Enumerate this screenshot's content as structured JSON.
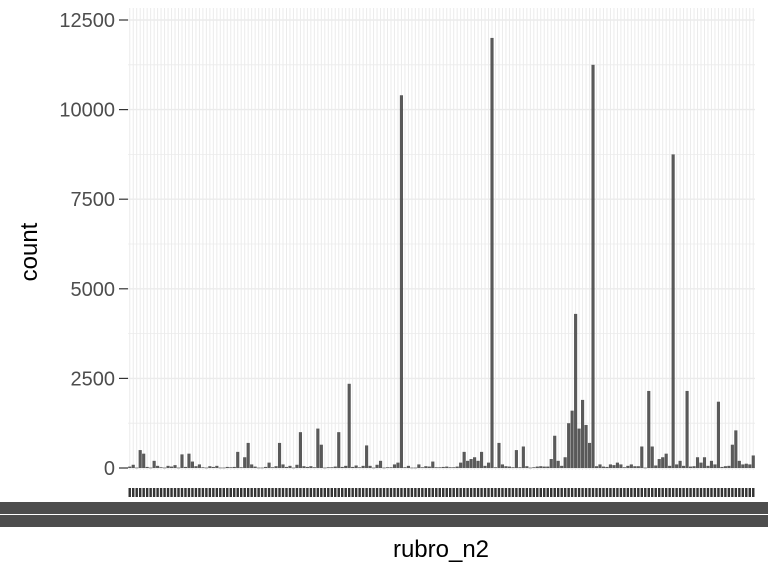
{
  "chart_data": {
    "type": "bar",
    "xlabel": "rubro_n2",
    "ylabel": "count",
    "ylim": [
      0,
      12500
    ],
    "y_ticks": [
      0,
      2500,
      5000,
      7500,
      10000,
      12500
    ],
    "y_tick_labels": [
      "0",
      "2500",
      "5000",
      "7500",
      "10000",
      "12500"
    ],
    "x_tick_labels_legible": false,
    "grid": true,
    "legend": "none",
    "colors": {
      "bar": "#595959",
      "grid": "#ebebeb",
      "tick_text": "#4d4d4d",
      "title_text": "#000000",
      "x_tick_text": "#3a3a3a"
    },
    "values": [
      40,
      90,
      10,
      500,
      400,
      30,
      10,
      200,
      60,
      20,
      10,
      60,
      40,
      80,
      10,
      380,
      30,
      400,
      180,
      50,
      100,
      20,
      10,
      50,
      30,
      60,
      10,
      10,
      30,
      20,
      30,
      450,
      20,
      300,
      700,
      100,
      40,
      10,
      10,
      30,
      150,
      20,
      50,
      700,
      100,
      30,
      60,
      10,
      90,
      1000,
      50,
      30,
      50,
      20,
      1100,
      650,
      10,
      20,
      20,
      40,
      1000,
      30,
      60,
      2350,
      30,
      70,
      20,
      60,
      630,
      60,
      10,
      90,
      200,
      10,
      20,
      20,
      100,
      150,
      10400,
      20,
      60,
      10,
      10,
      100,
      20,
      50,
      40,
      180,
      20,
      20,
      30,
      40,
      20,
      20,
      40,
      150,
      450,
      200,
      250,
      300,
      200,
      450,
      60,
      150,
      12000,
      20,
      700,
      100,
      50,
      40,
      20,
      500,
      20,
      600,
      50,
      10,
      20,
      40,
      50,
      40,
      40,
      250,
      900,
      200,
      60,
      300,
      1250,
      1600,
      4300,
      1100,
      1900,
      1200,
      700,
      11250,
      50,
      100,
      40,
      30,
      100,
      80,
      150,
      100,
      20,
      60,
      100,
      50,
      50,
      600,
      10,
      2150,
      600,
      70,
      250,
      300,
      400,
      60,
      8750,
      100,
      200,
      60,
      2150,
      40,
      50,
      300,
      150,
      300,
      60,
      200,
      100,
      1850,
      30,
      50,
      60,
      650,
      1050,
      200,
      100,
      120,
      100,
      350
    ]
  }
}
